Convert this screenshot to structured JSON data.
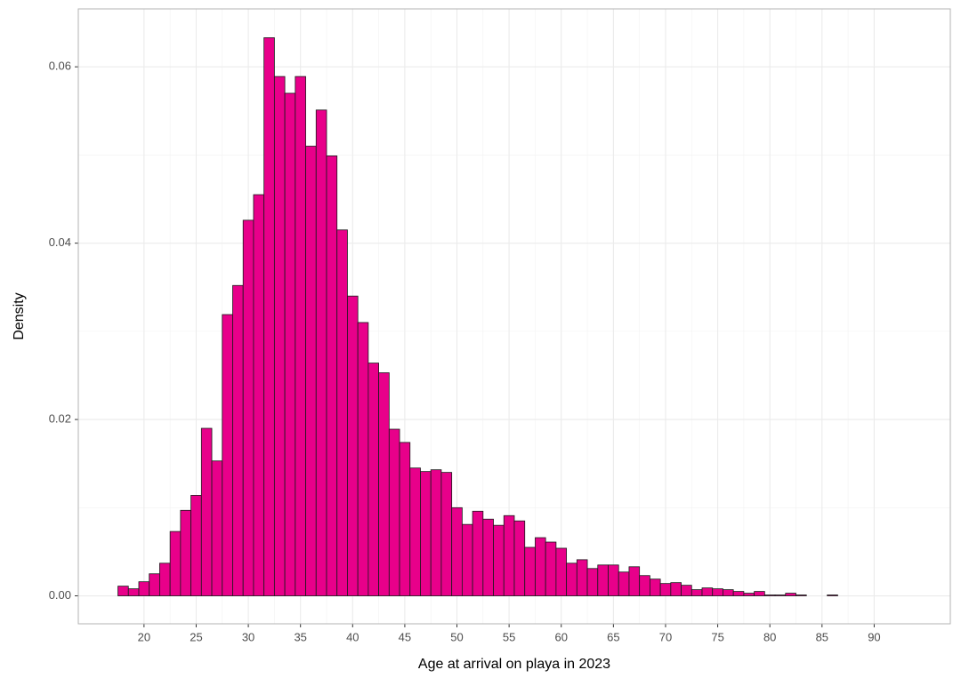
{
  "chart_data": {
    "type": "histogram",
    "x_label": "Age at arrival on playa in 2023",
    "y_label": "Density",
    "bins": [
      17.5,
      18.5,
      19.5,
      20.5,
      21.5,
      22.5,
      23.5,
      24.5,
      25.5,
      26.5,
      27.5,
      28.5,
      29.5,
      30.5,
      31.5,
      32.5,
      33.5,
      34.5,
      35.5,
      36.5,
      37.5,
      38.5,
      39.5,
      40.5,
      41.5,
      42.5,
      43.5,
      44.5,
      45.5,
      46.5,
      47.5,
      48.5,
      49.5,
      50.5,
      51.5,
      52.5,
      53.5,
      54.5,
      55.5,
      56.5,
      57.5,
      58.5,
      59.5,
      60.5,
      61.5,
      62.5,
      63.5,
      64.5,
      65.5,
      66.5,
      67.5,
      68.5,
      69.5,
      70.5,
      71.5,
      72.5,
      73.5,
      74.5,
      75.5,
      76.5,
      77.5,
      78.5,
      79.5,
      80.5,
      81.5,
      82.5,
      83.5,
      84.5,
      85.5,
      86.5,
      87.5,
      88.5,
      89.5,
      90.5,
      91.5,
      92.5,
      93.5
    ],
    "values": [
      0.0011,
      0.0008,
      0.0016,
      0.0025,
      0.0037,
      0.0073,
      0.0097,
      0.0114,
      0.019,
      0.0153,
      0.0319,
      0.0352,
      0.0426,
      0.0455,
      0.0633,
      0.0589,
      0.057,
      0.0589,
      0.051,
      0.0551,
      0.0499,
      0.0415,
      0.034,
      0.031,
      0.0264,
      0.0253,
      0.0189,
      0.0174,
      0.0145,
      0.0141,
      0.0143,
      0.014,
      0.01,
      0.0081,
      0.0096,
      0.0087,
      0.008,
      0.0091,
      0.0085,
      0.0055,
      0.0066,
      0.0061,
      0.0054,
      0.0037,
      0.0041,
      0.0031,
      0.0035,
      0.0035,
      0.0027,
      0.0033,
      0.0023,
      0.0019,
      0.0014,
      0.0015,
      0.0012,
      0.0007,
      0.0009,
      0.0008,
      0.0007,
      0.0005,
      0.0003,
      0.0005,
      0.0001,
      0.0001,
      0.0003,
      0.0001,
      0,
      0,
      0.0001,
      0,
      0,
      0,
      0,
      0,
      0,
      0
    ],
    "color": "#e8008a",
    "edgecolor": "#1a1a1a",
    "xlim": [
      13.7,
      97.3
    ],
    "ylim": [
      -0.00317,
      0.06657
    ],
    "xticks": [
      20,
      25,
      30,
      35,
      40,
      45,
      50,
      55,
      60,
      65,
      70,
      75,
      80,
      85,
      90
    ],
    "yticks": [
      {
        "value": 0,
        "label": "0.00"
      },
      0.02,
      0.04,
      0.06
    ],
    "grid": true
  }
}
